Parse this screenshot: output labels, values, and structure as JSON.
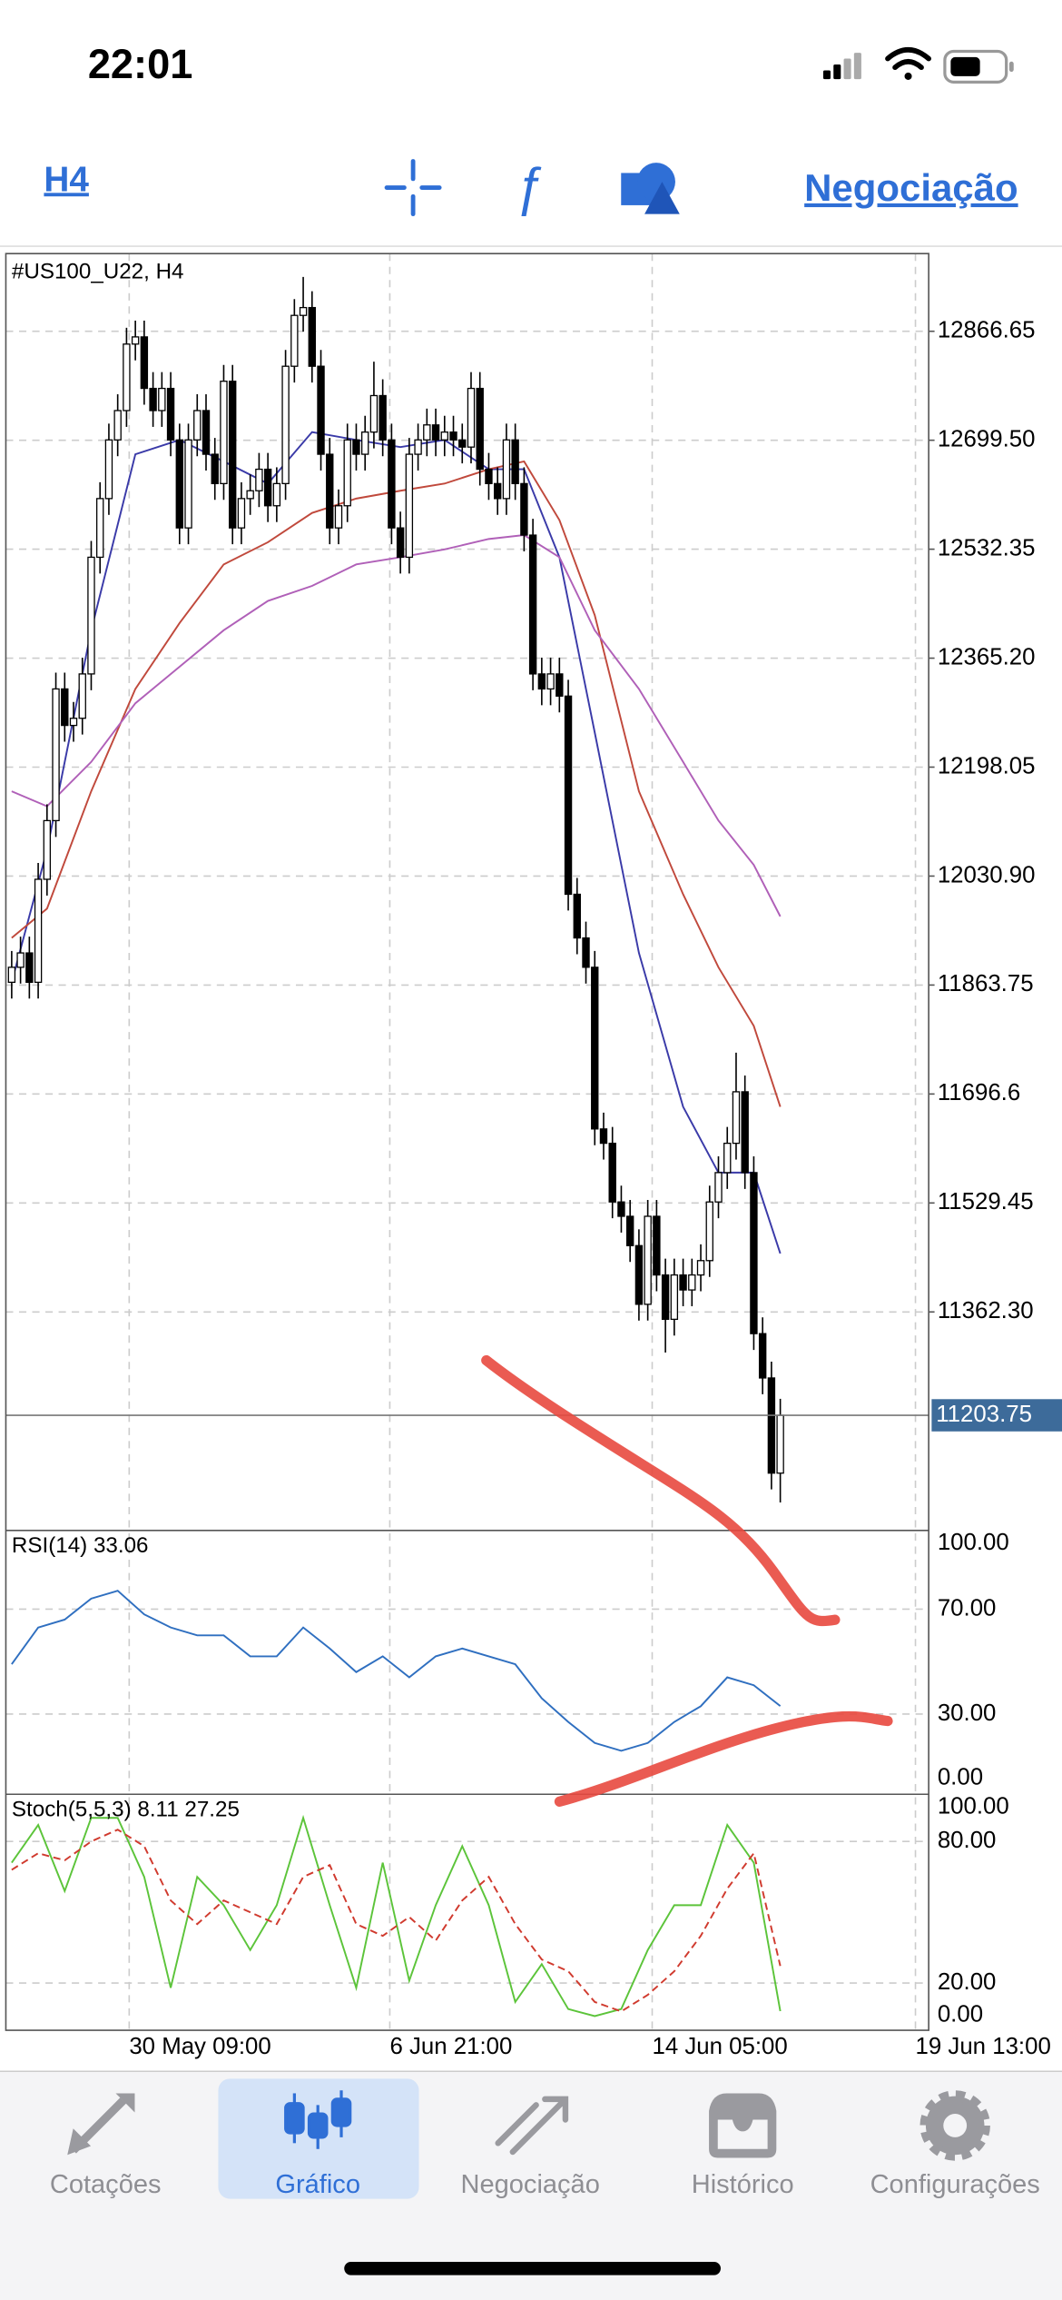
{
  "status_bar": {
    "time": "22:01"
  },
  "toolbar": {
    "timeframe": "H4",
    "trade": "Negociação"
  },
  "chart_data": {
    "type": "candlestick",
    "title": "#US100_U22, H4",
    "bull_color": "#ffffff",
    "bear_color": "#000000",
    "xlim": [
      -0.66,
      103.8
    ],
    "xticks": [
      {
        "value": 13.3,
        "label": "30 May 09:00"
      },
      {
        "value": 42.8,
        "label": "6 Jun 21:00"
      },
      {
        "value": 72.5,
        "label": "14 Jun 05:00"
      },
      {
        "value": 102.3,
        "label": "19 Jun 13:00"
      }
    ],
    "ylim": [
      11029.4,
      12985.8
    ],
    "yticks": [
      12866.65,
      {
        "value": 12699.5,
        "label": "12699.50"
      },
      12532.35,
      {
        "value": 12365.2,
        "label": "12365.20"
      },
      12198.05,
      {
        "value": 12030.9,
        "label": "12030.90"
      },
      11863.75,
      11696.6,
      11529.45,
      {
        "value": 11362.3,
        "label": "11362.30"
      }
    ],
    "grid": true,
    "last_price": 11203.75,
    "last_price_color": "#3d6b9a",
    "open": [
      11868,
      11891,
      11913,
      11868,
      12026,
      12116,
      12318,
      12262,
      12273,
      12341,
      12520,
      12610,
      12700,
      12745,
      12847,
      12858,
      12779,
      12745,
      12779,
      12700,
      12565,
      12700,
      12745,
      12678,
      12633,
      12790,
      12565,
      12610,
      12622,
      12655,
      12599,
      12633,
      12813,
      12891,
      12903,
      12813,
      12678,
      12565,
      12599,
      12700,
      12678,
      12712,
      12768,
      12700,
      12565,
      12520,
      12678,
      12700,
      12723,
      12700,
      12712,
      12700,
      12689,
      12779,
      12655,
      12633,
      12610,
      12700,
      12633,
      12554,
      12341,
      12318,
      12341,
      12307,
      12003,
      11936,
      11891,
      11643,
      11621,
      11531,
      11509,
      11464,
      11374,
      11509,
      11419,
      11351,
      11419,
      11396,
      11419,
      11441,
      11531,
      11576,
      11621,
      11700,
      11576,
      11329,
      11261,
      11115
    ],
    "high": [
      11916,
      11938,
      11938,
      12051,
      12141,
      12343,
      12343,
      12298,
      12366,
      12545,
      12635,
      12725,
      12770,
      12872,
      12883,
      12883,
      12804,
      12804,
      12804,
      12725,
      12725,
      12770,
      12770,
      12703,
      12815,
      12815,
      12635,
      12647,
      12680,
      12680,
      12658,
      12838,
      12916,
      12950,
      12928,
      12838,
      12703,
      12624,
      12725,
      12725,
      12737,
      12820,
      12793,
      12725,
      12590,
      12703,
      12725,
      12748,
      12748,
      12737,
      12737,
      12725,
      12804,
      12804,
      12680,
      12658,
      12725,
      12725,
      12658,
      12579,
      12366,
      12366,
      12366,
      12332,
      12028,
      11961,
      11916,
      11668,
      11646,
      11556,
      11534,
      11489,
      11534,
      11534,
      11444,
      11444,
      11444,
      11444,
      11466,
      11556,
      11601,
      11646,
      11760,
      11725,
      11601,
      11354,
      11286,
      11229
    ],
    "low": [
      11843,
      11866,
      11843,
      11843,
      12001,
      12091,
      12237,
      12237,
      12248,
      12316,
      12495,
      12585,
      12675,
      12720,
      12822,
      12754,
      12720,
      12720,
      12675,
      12540,
      12540,
      12675,
      12653,
      12608,
      12608,
      12540,
      12540,
      12585,
      12597,
      12574,
      12574,
      12608,
      12788,
      12866,
      12788,
      12653,
      12540,
      12540,
      12574,
      12653,
      12653,
      12687,
      12675,
      12540,
      12495,
      12495,
      12653,
      12675,
      12675,
      12675,
      12675,
      12664,
      12664,
      12630,
      12608,
      12585,
      12585,
      12608,
      12529,
      12316,
      12293,
      12293,
      12282,
      11978,
      11911,
      11866,
      11618,
      11596,
      11506,
      11484,
      11439,
      11349,
      11349,
      11394,
      11300,
      11326,
      11371,
      11371,
      11394,
      11416,
      11506,
      11551,
      11596,
      11551,
      11304,
      11236,
      11090,
      11070
    ],
    "close": [
      11891,
      11913,
      11868,
      12026,
      12116,
      12318,
      12262,
      12273,
      12341,
      12520,
      12610,
      12700,
      12745,
      12847,
      12858,
      12779,
      12745,
      12779,
      12700,
      12565,
      12700,
      12745,
      12678,
      12633,
      12790,
      12565,
      12610,
      12622,
      12655,
      12599,
      12633,
      12813,
      12891,
      12903,
      12813,
      12678,
      12565,
      12599,
      12700,
      12678,
      12712,
      12768,
      12700,
      12565,
      12520,
      12678,
      12700,
      12723,
      12700,
      12712,
      12700,
      12689,
      12779,
      12655,
      12633,
      12610,
      12700,
      12633,
      12554,
      12341,
      12318,
      12341,
      12307,
      12003,
      11936,
      11891,
      11643,
      11621,
      11531,
      11509,
      11464,
      11374,
      11509,
      11419,
      11351,
      11419,
      11396,
      11419,
      11441,
      11531,
      11576,
      11621,
      11700,
      11576,
      11329,
      11261,
      11115,
      11203.75
    ],
    "ma_x": [
      0,
      4,
      9,
      14,
      19,
      24,
      29,
      34,
      39,
      44,
      49,
      54,
      58,
      62,
      66,
      71,
      76,
      80,
      84,
      87
    ],
    "ma_series": [
      {
        "color": "#3a3aa8",
        "values": [
          11868,
          12071,
          12408,
          12678,
          12700,
          12667,
          12633,
          12712,
          12700,
          12689,
          12700,
          12655,
          12655,
          12520,
          12251,
          11913,
          11677,
          11576,
          11576,
          11452
        ]
      },
      {
        "color": "#c0493c",
        "values": [
          11936,
          11981,
          12161,
          12318,
          12419,
          12509,
          12543,
          12588,
          12610,
          12622,
          12633,
          12655,
          12667,
          12577,
          12431,
          12161,
          12003,
          11891,
          11801,
          11677
        ]
      },
      {
        "color": "#b060b8",
        "values": [
          12161,
          12138,
          12206,
          12296,
          12352,
          12408,
          12453,
          12476,
          12509,
          12520,
          12532,
          12548,
          12554,
          12520,
          12408,
          12318,
          12206,
          12116,
          12048,
          11969
        ]
      }
    ],
    "osc_x": [
      0,
      3,
      6,
      9,
      12,
      15,
      18,
      21,
      24,
      27,
      30,
      33,
      36,
      39,
      42,
      45,
      48,
      51,
      54,
      57,
      60,
      63,
      66,
      69,
      72,
      75,
      78,
      81,
      84,
      87
    ],
    "rsi": {
      "label": "RSI(14) 33.06",
      "color": "#2f6fc0",
      "ylim": [
        0,
        100
      ],
      "yticks": [
        {
          "value": 100,
          "label": "100.00"
        },
        {
          "value": 70,
          "label": "70.00"
        },
        {
          "value": 30,
          "label": "30.00"
        },
        {
          "value": 0,
          "label": "0.00"
        }
      ],
      "values": [
        49,
        63,
        66,
        74,
        77,
        68,
        63,
        60,
        60,
        52,
        52,
        63,
        55,
        46,
        52,
        44,
        52,
        55,
        52,
        49,
        36,
        27,
        19,
        16,
        19,
        27,
        33,
        44,
        41,
        33.06
      ]
    },
    "stoch": {
      "label": "Stoch(5,5,3) 8.11 27.25",
      "ylim": [
        0,
        100
      ],
      "yticks": [
        {
          "value": 100,
          "label": "100.00"
        },
        {
          "value": 80,
          "label": "80.00"
        },
        {
          "value": 20,
          "label": "20.00"
        },
        {
          "value": 0,
          "label": "0.00"
        }
      ],
      "series": [
        {
          "color": "#5cc43a",
          "dashed": false,
          "values": [
            71,
            87,
            59,
            90,
            90,
            65,
            18,
            65,
            53,
            34,
            53,
            90,
            53,
            18,
            71,
            21,
            53,
            78,
            53,
            12,
            28,
            9,
            6,
            9,
            34,
            53,
            53,
            87,
            71,
            8.11
          ]
        },
        {
          "color": "#d03a2e",
          "dashed": true,
          "values": [
            68,
            75,
            72,
            80,
            85,
            78,
            55,
            45,
            55,
            50,
            45,
            65,
            70,
            45,
            40,
            48,
            38,
            55,
            65,
            45,
            30,
            25,
            12,
            8,
            15,
            25,
            40,
            60,
            75,
            27.25
          ]
        }
      ]
    }
  },
  "tabs": [
    {
      "label": "Cotações"
    },
    {
      "label": "Gráfico"
    },
    {
      "label": "Negociação"
    },
    {
      "label": "Histórico"
    },
    {
      "label": "Configurações"
    }
  ]
}
